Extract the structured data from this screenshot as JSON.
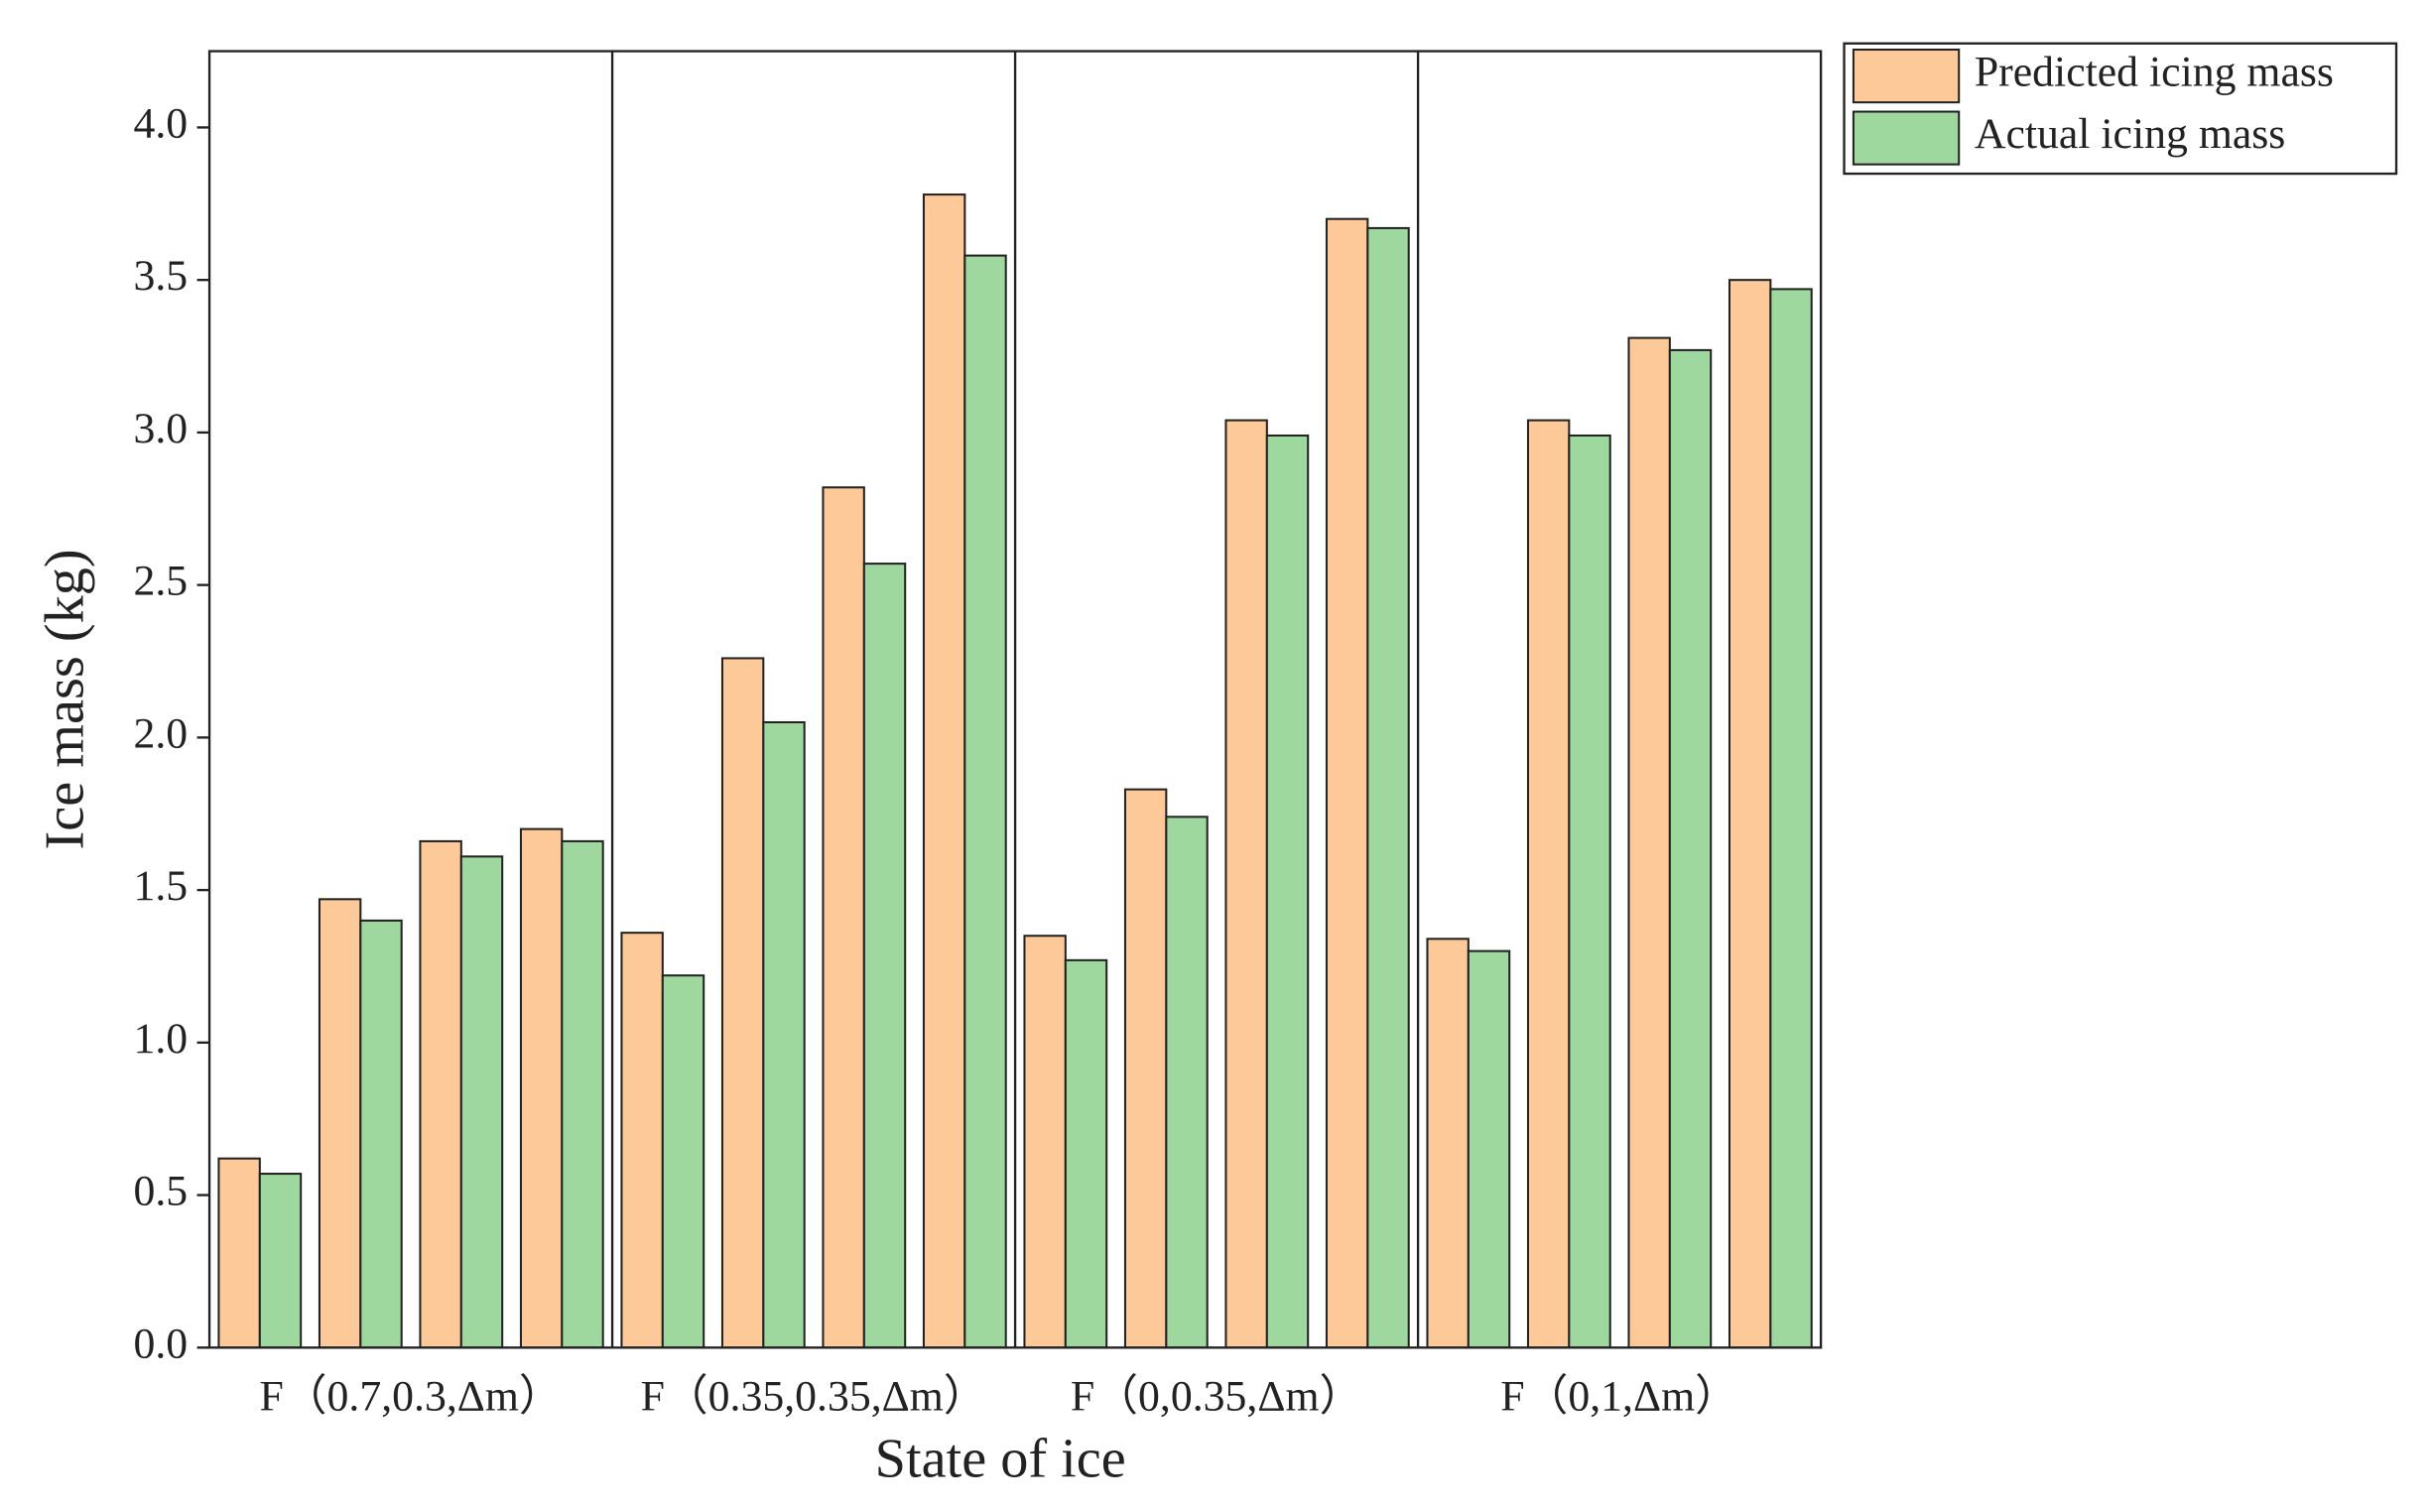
{
  "chart_data": {
    "type": "bar",
    "x_label": "State of ice",
    "y_label": "Ice mass (kg)",
    "categories": [
      null,
      null,
      null,
      null,
      null,
      null,
      null,
      null,
      null,
      null,
      null,
      null,
      null,
      null,
      null,
      null
    ],
    "groups": [
      "F（0.7,0.3,Δm）",
      "F（0.35,0.35,Δm）",
      "F（0,0.35,Δm）",
      "F（0,1,Δm）"
    ],
    "series": [
      {
        "name": "Predicted icing mass",
        "color": "#fdc998",
        "values": [
          0.62,
          1.47,
          1.66,
          1.7,
          1.36,
          2.26,
          2.82,
          3.78,
          1.35,
          1.83,
          3.04,
          3.7,
          1.34,
          3.04,
          3.31,
          3.5
        ]
      },
      {
        "name": "Actual icing mass",
        "color": "#9ed89e",
        "values": [
          0.57,
          1.4,
          1.61,
          1.66,
          1.22,
          2.05,
          2.57,
          3.58,
          1.27,
          1.74,
          2.99,
          3.67,
          1.3,
          2.99,
          3.27,
          3.47
        ]
      }
    ],
    "ylim": [
      0,
      4.25
    ],
    "yticks": [
      {
        "value": 0,
        "label": "0.0"
      },
      {
        "value": 0.5,
        "label": "0.5"
      },
      {
        "value": 1,
        "label": "1.0"
      },
      {
        "value": 1.5,
        "label": "1.5"
      },
      {
        "value": 2,
        "label": "2.0"
      },
      {
        "value": 2.5,
        "label": "2.5"
      },
      {
        "value": 3,
        "label": "3.0"
      },
      {
        "value": 3.5,
        "label": "3.5"
      },
      {
        "value": 4,
        "label": "4.0"
      }
    ],
    "legend": "outside-top-right"
  }
}
